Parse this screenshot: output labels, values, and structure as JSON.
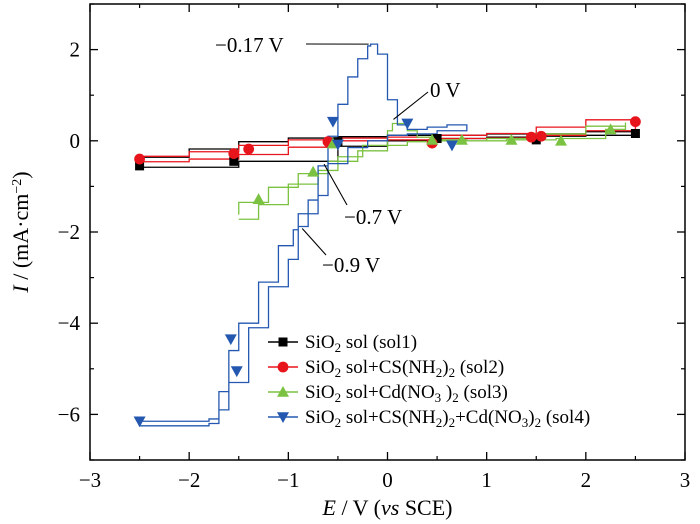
{
  "chart_data": {
    "type": "line",
    "xlim": [
      -3,
      3
    ],
    "ylim": [
      -7,
      3
    ],
    "xticks": [
      "−3",
      "−2",
      "−1",
      "0",
      "1",
      "2",
      "3"
    ],
    "yticks": [
      "−6",
      "−4",
      "−2",
      "0",
      "2"
    ],
    "xlabel": {
      "var": "E",
      "rest": " / V (",
      "vs": "vs",
      "tail": " SCE)"
    },
    "ylabel": {
      "var": "I",
      "rest": " / (mA·cm",
      "sup": "−2",
      "tail": ")"
    },
    "grid": false,
    "legend_position": "bottom-right",
    "annotations": [
      {
        "text": "−0.17 V",
        "point": [
          -0.17,
          2.12
        ]
      },
      {
        "text": "0 V",
        "point": [
          0.02,
          0.38
        ]
      },
      {
        "text": "−0.7 V",
        "point": [
          -0.7,
          -0.38
        ]
      },
      {
        "text": "−0.9 V",
        "point": [
          -0.9,
          -1.88
        ]
      }
    ],
    "series": [
      {
        "name": "SiO2 sol (sol1)",
        "legend_label": [
          "SiO",
          "2",
          " sol (sol1)"
        ],
        "color": "#000000",
        "marker": "square",
        "x": [
          -2.5,
          -1.5,
          -0.5,
          0,
          0.5,
          1,
          1.5,
          2,
          2.5,
          2.5,
          2.0,
          1.0,
          0,
          -0.5,
          -1.0,
          -1.5,
          -2.0,
          -2.5
        ],
        "y": [
          -0.58,
          -0.45,
          -0.12,
          0.0,
          0.05,
          0.08,
          0.1,
          0.12,
          0.16,
          0.2,
          0.15,
          0.12,
          0.09,
          0.06,
          -0.02,
          -0.18,
          -0.36,
          -0.5
        ],
        "markers": [
          [
            -2.5,
            -0.55
          ],
          [
            -1.55,
            -0.45
          ],
          [
            -0.5,
            -0.02
          ],
          [
            0.5,
            0.05
          ],
          [
            1.5,
            0.02
          ],
          [
            2.5,
            0.16
          ]
        ]
      },
      {
        "name": "SiO2 sol+CS(NH2)2 (sol2)",
        "legend_label": [
          "SiO",
          "2",
          " sol+CS(NH",
          "2",
          ")",
          "2",
          " (sol2)"
        ],
        "color": "#e8141c",
        "marker": "circle",
        "x": [
          -2.5,
          -2.0,
          -1.5,
          -1.0,
          -0.5,
          0,
          0.5,
          1.0,
          1.5,
          2.0,
          2.5,
          2.5,
          2.0,
          1.5,
          1.0,
          0.5,
          0,
          -0.5,
          -1.0,
          -1.5,
          -2.0,
          -2.5
        ],
        "y": [
          -0.46,
          -0.4,
          -0.3,
          -0.14,
          0.0,
          0.02,
          0.05,
          0.06,
          0.12,
          0.22,
          0.4,
          0.46,
          0.3,
          0.16,
          0.12,
          0.08,
          0.06,
          0.02,
          -0.1,
          -0.24,
          -0.34,
          -0.4
        ],
        "markers": [
          [
            -2.5,
            -0.4
          ],
          [
            -1.55,
            -0.28
          ],
          [
            -1.4,
            -0.18
          ],
          [
            -0.6,
            -0.02
          ],
          [
            0.45,
            -0.05
          ],
          [
            1.45,
            0.08
          ],
          [
            1.55,
            0.1
          ],
          [
            2.5,
            0.42
          ]
        ]
      },
      {
        "name": "SiO2 sol+Cd(NO3)2 (sol3)",
        "legend_label": [
          "SiO",
          "2",
          " sol+Cd(NO",
          "3",
          " )",
          "2",
          " (sol3)"
        ],
        "color": "#7cc242",
        "marker": "triangle-up",
        "x": [
          -1.5,
          -1.3,
          -1.0,
          -0.7,
          -0.5,
          -0.25,
          0.0,
          0.05,
          0.2,
          0.3,
          0.5,
          0.8,
          1.2,
          1.7,
          2.2,
          2.4,
          2.4,
          2.0,
          1.5,
          1.0,
          0.5,
          0.2,
          0.0,
          -0.3,
          -0.6,
          -0.9,
          -1.2,
          -1.5
        ],
        "y": [
          -1.72,
          -1.4,
          -0.95,
          -0.65,
          -0.35,
          -0.1,
          0.22,
          0.38,
          0.22,
          0.08,
          0.02,
          0.0,
          0.02,
          0.05,
          0.25,
          0.4,
          0.32,
          0.15,
          0.05,
          0.0,
          -0.02,
          -0.1,
          -0.22,
          -0.45,
          -0.72,
          -1.02,
          -1.35,
          -1.62
        ],
        "markers": [
          [
            -1.3,
            -1.28
          ],
          [
            -0.75,
            -0.68
          ],
          [
            -0.55,
            -0.06
          ],
          [
            0.45,
            0.02
          ],
          [
            0.75,
            0.02
          ],
          [
            1.25,
            0.02
          ],
          [
            1.75,
            0.0
          ],
          [
            2.25,
            0.25
          ]
        ]
      },
      {
        "name": "SiO2 sol+CS(NH2)2+Cd(NO3)2 (sol4)",
        "legend_label": [
          "SiO",
          "2",
          " sol+CS(NH",
          "2",
          ")",
          "2",
          "+Cd(NO",
          "3",
          ")",
          "2",
          " (sol4)"
        ],
        "color": "#2458b0",
        "marker": "triangle-down",
        "x": [
          -2.5,
          -1.8,
          -1.7,
          -1.6,
          -1.5,
          -1.3,
          -1.1,
          -0.95,
          -0.9,
          -0.8,
          -0.7,
          -0.6,
          -0.5,
          -0.4,
          -0.3,
          -0.2,
          -0.17,
          -0.1,
          0.0,
          0.1,
          0.2,
          0.4,
          0.6,
          0.8,
          0.8,
          0.5,
          0.2,
          0.0,
          -0.2,
          -0.4,
          -0.6,
          -0.7,
          -0.9,
          -1.0,
          -1.2,
          -1.4,
          -1.6,
          -1.7,
          -1.8,
          -1.9,
          -2.5
        ],
        "y": [
          -6.15,
          -6.1,
          -5.5,
          -4.6,
          -4.0,
          -3.1,
          -2.3,
          -1.95,
          -1.88,
          -1.3,
          -0.55,
          0.1,
          0.8,
          1.4,
          1.8,
          2.08,
          2.12,
          1.9,
          0.9,
          0.35,
          0.25,
          0.3,
          0.35,
          0.3,
          0.22,
          0.15,
          0.12,
          0.0,
          -0.15,
          -0.5,
          -1.2,
          -1.6,
          -2.6,
          -3.2,
          -4.1,
          -5.3,
          -5.9,
          -6.2,
          -6.25,
          -6.25,
          -6.2
        ],
        "markers": [
          [
            -2.5,
            -6.15
          ],
          [
            -1.58,
            -4.35
          ],
          [
            -1.52,
            -5.05
          ],
          [
            -0.55,
            0.42
          ],
          [
            0.2,
            0.38
          ],
          [
            0.65,
            -0.1
          ],
          [
            -0.5,
            -0.08
          ]
        ]
      }
    ]
  }
}
